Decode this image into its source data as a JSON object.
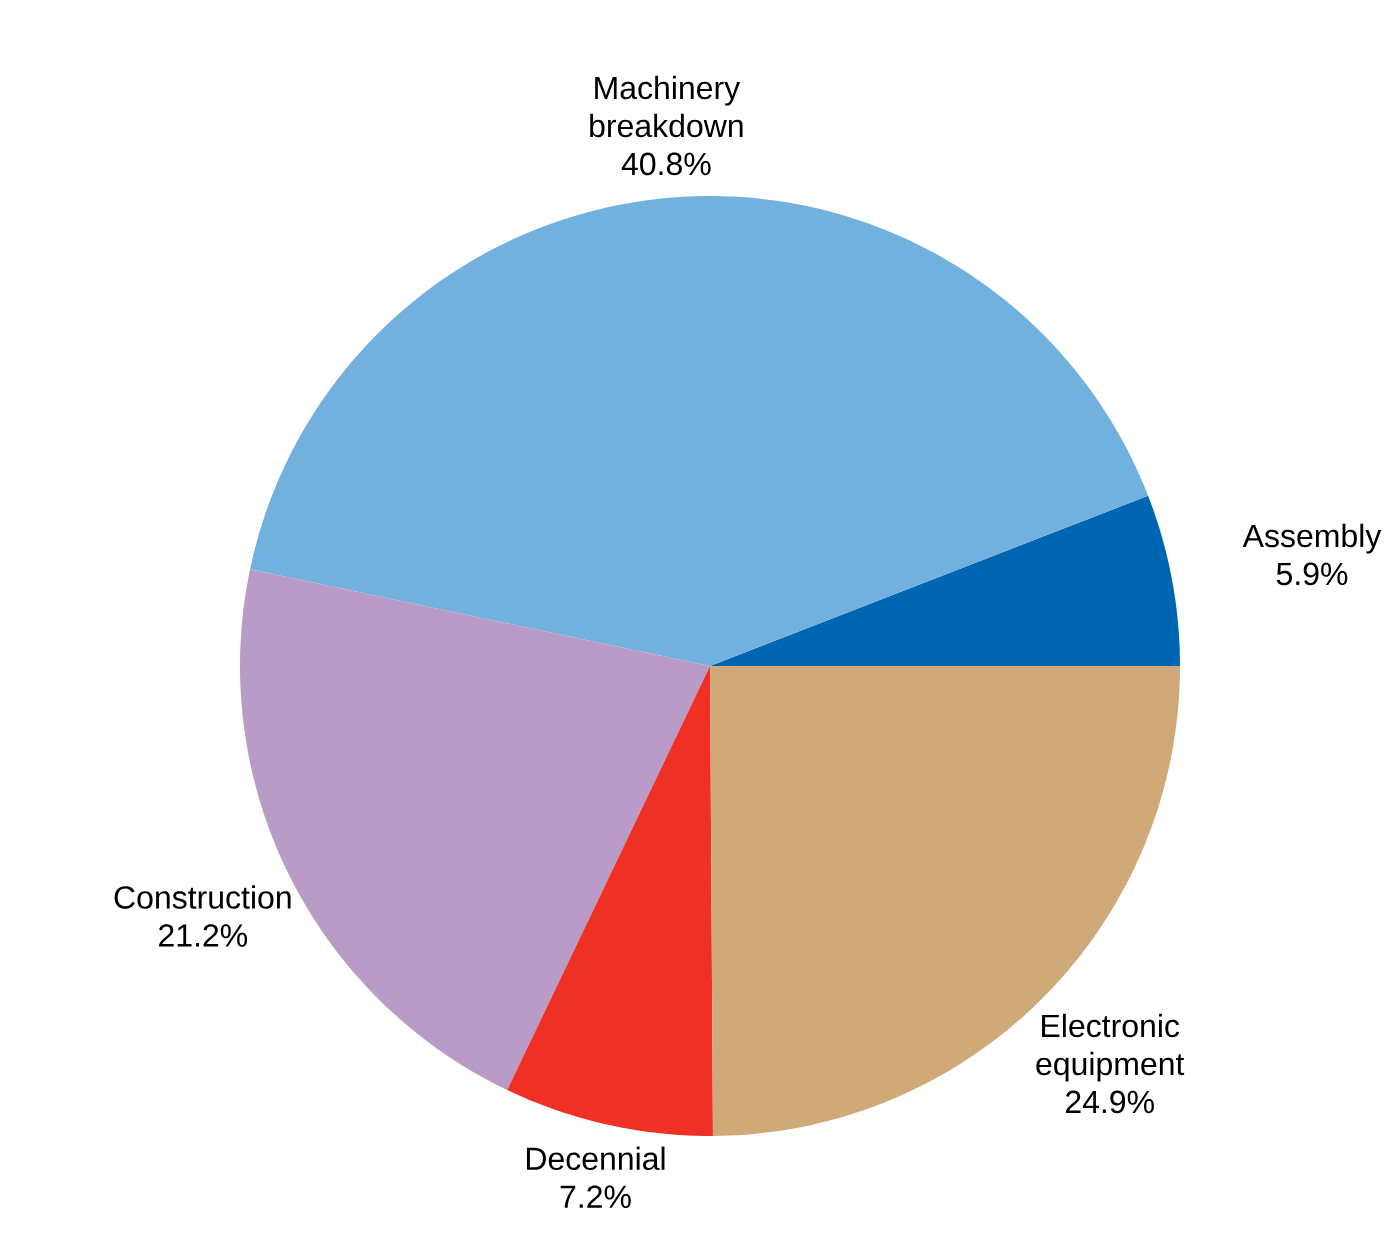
{
  "chart_data": {
    "type": "pie",
    "categories": [
      "Assembly",
      "Machinery breakdown",
      "Construction",
      "Decennial",
      "Electronic equipment"
    ],
    "values": [
      5.9,
      40.8,
      21.2,
      7.2,
      24.9
    ],
    "value_labels": [
      "5.9%",
      "40.8%",
      "21.2%",
      "7.2%",
      "24.9%"
    ],
    "colors": [
      "#0066b3",
      "#72b0dd",
      "#b99bc8",
      "#ee3124",
      "#cfa977"
    ]
  }
}
